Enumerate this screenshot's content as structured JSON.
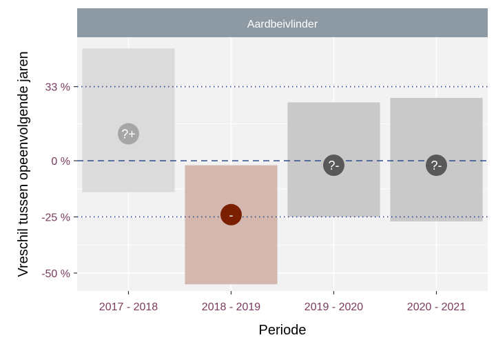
{
  "chart_data": {
    "type": "bar",
    "facet_title": "Aardbeivlinder",
    "xlabel": "Periode",
    "ylabel": "Vreschil tussen opeenvolgende jaren",
    "categories": [
      "2017 - 2018",
      "2018 - 2019",
      "2019 - 2020",
      "2020 - 2021"
    ],
    "estimates": [
      12,
      -24,
      -2,
      -2
    ],
    "ci_lower": [
      -14,
      -55,
      -25,
      -27
    ],
    "ci_upper": [
      50,
      -2,
      26,
      28
    ],
    "labels": [
      "?+",
      "-",
      "?-",
      "?-"
    ],
    "y_ticks": [
      {
        "value": 33,
        "label": "33 %"
      },
      {
        "value": 0,
        "label": "0 %"
      },
      {
        "value": -25,
        "label": "-25 %"
      },
      {
        "value": -50,
        "label": "-50 %"
      }
    ],
    "reference_lines": [
      {
        "value": 33,
        "style": "dotted"
      },
      {
        "value": 0,
        "style": "dashed"
      },
      {
        "value": -25,
        "style": "dotted"
      }
    ],
    "ylim": [
      -58,
      55
    ],
    "colors": {
      "panel_bg": "#f2f2f2",
      "strip_bg": "#8d9aa3",
      "strip_text": "#ffffff",
      "grid": "#ffffff",
      "ref_line": "#2e4a8a",
      "tick_text": "#7a3b5e",
      "axis_title": "#000000",
      "bar_fills": [
        "#d9d9d9",
        "#d2b4ab",
        "#c6c6c6",
        "#c6c6c6"
      ],
      "point_fills": [
        "#a6a6a6",
        "#7a1f00",
        "#595959",
        "#595959"
      ],
      "point_text": "#ffffff"
    }
  }
}
